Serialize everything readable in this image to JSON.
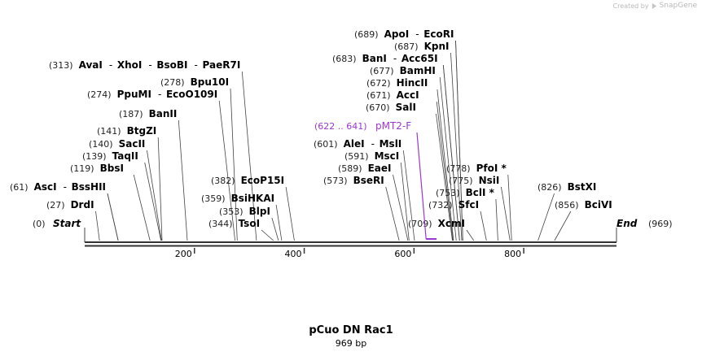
{
  "credit": {
    "prefix": "Created by",
    "brand": "SnapGene"
  },
  "map": {
    "name": "pCuo DN Rac1",
    "length_label": "969 bp",
    "length": 969,
    "start_label": "Start",
    "start_pos": "(0)",
    "end_label": "End",
    "end_pos": "(969)"
  },
  "ruler": {
    "ticks": [
      {
        "pos": 200,
        "label": "200"
      },
      {
        "pos": 400,
        "label": "400"
      },
      {
        "pos": 600,
        "label": "600"
      },
      {
        "pos": 800,
        "label": "800"
      }
    ]
  },
  "labels": [
    {
      "pos": "(689)",
      "names": [
        "ApoI",
        "EcoRI"
      ],
      "cuts": [
        689,
        689
      ],
      "unique": false
    },
    {
      "pos": "(687)",
      "names": [
        "KpnI"
      ],
      "cuts": [
        687
      ],
      "unique": false
    },
    {
      "pos": "(683)",
      "names": [
        "BanI",
        "Acc65I"
      ],
      "cuts": [
        683,
        683
      ],
      "unique": false
    },
    {
      "pos": "(677)",
      "names": [
        "BamHI"
      ],
      "cuts": [
        677
      ],
      "unique": false
    },
    {
      "pos": "(672)",
      "names": [
        "HincII"
      ],
      "cuts": [
        672
      ],
      "unique": false
    },
    {
      "pos": "(671)",
      "names": [
        "AccI"
      ],
      "cuts": [
        671
      ],
      "unique": false
    },
    {
      "pos": "(670)",
      "names": [
        "SalI"
      ],
      "cuts": [
        670
      ],
      "unique": false
    },
    {
      "pos": "(313)",
      "names": [
        "AvaI",
        "XhoI",
        "BsoBI",
        "PaeR7I"
      ],
      "cuts": [
        313
      ],
      "unique": false
    },
    {
      "pos": "(278)",
      "names": [
        "Bpu10I"
      ],
      "cuts": [
        278
      ],
      "unique": false
    },
    {
      "pos": "(274)",
      "names": [
        "PpuMI",
        "EcoO109I"
      ],
      "cuts": [
        274
      ],
      "unique": false
    },
    {
      "pos": "(187)",
      "names": [
        "BanII"
      ],
      "cuts": [
        187
      ],
      "unique": false
    },
    {
      "pos": "(141)",
      "names": [
        "BtgZI"
      ],
      "cuts": [
        141
      ],
      "unique": false
    },
    {
      "pos": "(140)",
      "names": [
        "SacII"
      ],
      "cuts": [
        140
      ],
      "unique": false
    },
    {
      "pos": "(139)",
      "names": [
        "TaqII"
      ],
      "cuts": [
        139
      ],
      "unique": false
    },
    {
      "pos": "(119)",
      "names": [
        "BbsI"
      ],
      "cuts": [
        119
      ],
      "unique": false
    },
    {
      "pos": "(61)",
      "names": [
        "AscI",
        "BssHII"
      ],
      "cuts": [
        61,
        61
      ],
      "unique": false
    },
    {
      "pos": "(27)",
      "names": [
        "DrdI"
      ],
      "cuts": [
        27
      ],
      "unique": false
    },
    {
      "pos": "(382)",
      "names": [
        "EcoP15I"
      ],
      "cuts": [
        382
      ],
      "unique": false
    },
    {
      "pos": "(359)",
      "names": [
        "BsiHKAI"
      ],
      "cuts": [
        359
      ],
      "unique": false
    },
    {
      "pos": "(353)",
      "names": [
        "BlpI"
      ],
      "cuts": [
        353
      ],
      "unique": false
    },
    {
      "pos": "(344)",
      "names": [
        "TsoI"
      ],
      "cuts": [
        344
      ],
      "unique": false
    },
    {
      "pos": "(601)",
      "names": [
        "AleI",
        "MslI"
      ],
      "cuts": [
        601
      ],
      "unique": false
    },
    {
      "pos": "(591)",
      "names": [
        "MscI"
      ],
      "cuts": [
        591
      ],
      "unique": false
    },
    {
      "pos": "(589)",
      "names": [
        "EaeI"
      ],
      "cuts": [
        589
      ],
      "unique": false
    },
    {
      "pos": "(573)",
      "names": [
        "BseRI"
      ],
      "cuts": [
        573
      ],
      "unique": false
    },
    {
      "pos": "(709)",
      "names": [
        "XcmI"
      ],
      "cuts": [
        709
      ],
      "unique": false
    },
    {
      "pos": "(778)",
      "names": [
        "PfoI *"
      ],
      "cuts": [
        778
      ],
      "unique": false
    },
    {
      "pos": "(775)",
      "names": [
        "NsiI"
      ],
      "cuts": [
        775
      ],
      "unique": false
    },
    {
      "pos": "(753)",
      "names": [
        "BclI *"
      ],
      "cuts": [
        753
      ],
      "unique": false
    },
    {
      "pos": "(732)",
      "names": [
        "SfcI"
      ],
      "cuts": [
        732
      ],
      "unique": false
    },
    {
      "pos": "(826)",
      "names": [
        "BstXI"
      ],
      "cuts": [
        826
      ],
      "unique": false
    },
    {
      "pos": "(856)",
      "names": [
        "BciVI"
      ],
      "cuts": [
        856
      ],
      "unique": false
    }
  ],
  "primer": {
    "pos": "(622 .. 641)",
    "name": "pMT2-F",
    "start": 622,
    "end": 641,
    "color": "#9b37d4"
  },
  "colors": {
    "line": "#444444",
    "text": "#000000",
    "number": "#222222"
  }
}
